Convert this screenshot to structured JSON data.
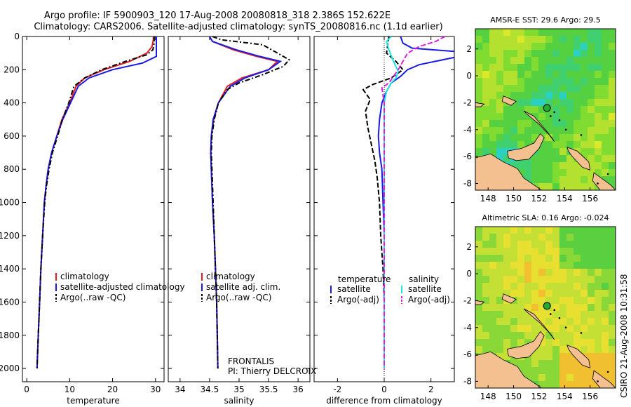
{
  "header": {
    "line1": "Argo profile: IF 5900903_120 17-Aug-2008 20080818_318 2.386S 152.622E",
    "line2": "Climatology: CARS2006. Satellite-adjusted climatology: synTS_20080816.nc (1.1d earlier)"
  },
  "credit": "CSIRO 21-Aug-2008 10:31:58",
  "pi_text": {
    "line1": "FRONTALIS",
    "line2": "PI: Thierry DELCROIX"
  },
  "colors": {
    "climatology": "#e02020",
    "satellite": "#1a1ae6",
    "argo": "#000000",
    "sat_salinity": "#1ee6e6",
    "argo_salinity": "#e020e0",
    "land": "#f4c090",
    "marker": "#22aa33"
  },
  "chart_data": [
    {
      "type": "line",
      "name": "temperature",
      "xlabel": "temperature",
      "ylabel": "",
      "xlim": [
        -1,
        32
      ],
      "ylim": [
        2080,
        0
      ],
      "xticks": [
        0,
        10,
        20,
        30
      ],
      "yticks": [
        0,
        200,
        400,
        600,
        800,
        1000,
        1200,
        1400,
        1600,
        1800,
        2000
      ],
      "legend": {
        "position": "bottom-right",
        "entries": [
          "climatology",
          "satellite-adjusted climatology",
          "Argo(..raw -QC)"
        ]
      },
      "series": [
        {
          "name": "climatology",
          "color": "#e02020",
          "dash": "",
          "points": [
            [
              29.5,
              0
            ],
            [
              29.5,
              20
            ],
            [
              29.2,
              60
            ],
            [
              28,
              100
            ],
            [
              24,
              150
            ],
            [
              18,
              200
            ],
            [
              13.5,
              250
            ],
            [
              11.5,
              300
            ],
            [
              10,
              400
            ],
            [
              8.2,
              500
            ],
            [
              7,
              600
            ],
            [
              5.8,
              700
            ],
            [
              5,
              800
            ],
            [
              4.5,
              900
            ],
            [
              4.1,
              1000
            ],
            [
              3.7,
              1200
            ],
            [
              3.3,
              1400
            ],
            [
              3,
              1600
            ],
            [
              2.7,
              1800
            ],
            [
              2.4,
              2000
            ]
          ]
        },
        {
          "name": "satellite-adjusted climatology",
          "color": "#1a1ae6",
          "dash": "",
          "points": [
            [
              30.2,
              0
            ],
            [
              30.2,
              40
            ],
            [
              30.2,
              80
            ],
            [
              30.2,
              120
            ],
            [
              27,
              160
            ],
            [
              20,
              200
            ],
            [
              14.5,
              250
            ],
            [
              12,
              300
            ],
            [
              10.2,
              400
            ],
            [
              8.4,
              500
            ],
            [
              7,
              600
            ],
            [
              5.8,
              700
            ],
            [
              5,
              800
            ],
            [
              4.5,
              900
            ],
            [
              4.1,
              1000
            ],
            [
              3.7,
              1200
            ],
            [
              3.3,
              1400
            ],
            [
              3,
              1600
            ],
            [
              2.7,
              1800
            ],
            [
              2.4,
              2000
            ]
          ]
        },
        {
          "name": "Argo(..raw -QC)",
          "color": "#000000",
          "dash": "7 3 2 3",
          "points": [
            [
              29.7,
              0
            ],
            [
              29.7,
              40
            ],
            [
              29.4,
              80
            ],
            [
              28,
              110
            ],
            [
              23,
              150
            ],
            [
              17.5,
              200
            ],
            [
              13.5,
              250
            ],
            [
              11,
              300
            ],
            [
              9.8,
              400
            ],
            [
              8.3,
              500
            ],
            [
              7.2,
              600
            ],
            [
              6,
              700
            ],
            [
              5.2,
              800
            ],
            [
              4.6,
              900
            ],
            [
              4.2,
              1000
            ],
            [
              3.7,
              1200
            ],
            [
              3.3,
              1400
            ],
            [
              3,
              1600
            ],
            [
              2.7,
              1800
            ],
            [
              2.4,
              2000
            ]
          ]
        }
      ]
    },
    {
      "type": "line",
      "name": "salinity",
      "xlabel": "salinity",
      "xlim": [
        33.8,
        36.2
      ],
      "ylim": [
        2080,
        0
      ],
      "xticks": [
        34,
        34.5,
        35,
        35.5,
        36
      ],
      "legend": {
        "position": "bottom-right",
        "entries": [
          "climatology",
          "satellite adj. clim.",
          "Argo(..raw -QC)"
        ]
      },
      "series": [
        {
          "name": "climatology",
          "color": "#e02020",
          "dash": "",
          "points": [
            [
              34.5,
              0
            ],
            [
              34.55,
              30
            ],
            [
              34.9,
              80
            ],
            [
              35.3,
              120
            ],
            [
              35.65,
              150
            ],
            [
              35.5,
              200
            ],
            [
              35.05,
              250
            ],
            [
              34.8,
              300
            ],
            [
              34.65,
              400
            ],
            [
              34.57,
              500
            ],
            [
              34.53,
              600
            ],
            [
              34.52,
              700
            ],
            [
              34.53,
              800
            ],
            [
              34.55,
              1000
            ],
            [
              34.58,
              1200
            ],
            [
              34.6,
              1400
            ],
            [
              34.62,
              1600
            ],
            [
              34.63,
              1800
            ],
            [
              34.64,
              2000
            ]
          ]
        },
        {
          "name": "satellite adj. clim.",
          "color": "#1a1ae6",
          "dash": "",
          "points": [
            [
              34.5,
              0
            ],
            [
              34.55,
              30
            ],
            [
              34.95,
              80
            ],
            [
              35.35,
              120
            ],
            [
              35.7,
              150
            ],
            [
              35.5,
              200
            ],
            [
              35.1,
              250
            ],
            [
              34.85,
              300
            ],
            [
              34.65,
              400
            ],
            [
              34.56,
              500
            ],
            [
              34.53,
              600
            ],
            [
              34.52,
              700
            ],
            [
              34.53,
              800
            ],
            [
              34.55,
              1000
            ],
            [
              34.58,
              1200
            ],
            [
              34.6,
              1400
            ],
            [
              34.62,
              1600
            ],
            [
              34.63,
              1800
            ],
            [
              34.64,
              2000
            ]
          ]
        },
        {
          "name": "Argo(..raw -QC)",
          "color": "#000000",
          "dash": "7 3 2 3",
          "points": [
            [
              34.55,
              0
            ],
            [
              34.7,
              20
            ],
            [
              35.4,
              50
            ],
            [
              35.6,
              90
            ],
            [
              35.85,
              140
            ],
            [
              35.75,
              180
            ],
            [
              35.4,
              230
            ],
            [
              35.0,
              280
            ],
            [
              34.8,
              320
            ],
            [
              34.65,
              400
            ],
            [
              34.58,
              500
            ],
            [
              34.54,
              600
            ],
            [
              34.53,
              700
            ],
            [
              34.54,
              800
            ],
            [
              34.56,
              1000
            ],
            [
              34.58,
              1200
            ],
            [
              34.6,
              1400
            ],
            [
              34.62,
              1600
            ],
            [
              34.63,
              1800
            ],
            [
              34.64,
              2000
            ]
          ]
        }
      ]
    },
    {
      "type": "line",
      "name": "difference from climatology",
      "xlabel": "difference from climatology",
      "xlim": [
        -3,
        3
      ],
      "ylim": [
        2080,
        0
      ],
      "xticks": [
        -2,
        0,
        2
      ],
      "legend": {
        "position": "bottom",
        "groups": [
          {
            "title": "temperature",
            "entries": [
              "satellite",
              "Argo(-adj)"
            ]
          },
          {
            "title": "salinity",
            "entries": [
              "satellite",
              "Argo(-adj)"
            ]
          }
        ]
      },
      "series": [
        {
          "name": "temperature satellite",
          "color": "#1a1ae6",
          "dash": "",
          "points": [
            [
              0.7,
              0
            ],
            [
              0.8,
              40
            ],
            [
              1.2,
              70
            ],
            [
              3,
              90
            ],
            [
              3.2,
              120
            ],
            [
              1.5,
              170
            ],
            [
              1,
              200
            ],
            [
              0.7,
              240
            ],
            [
              0.3,
              280
            ],
            [
              0.1,
              330
            ],
            [
              -0.1,
              400
            ],
            [
              -0.2,
              500
            ],
            [
              -0.25,
              600
            ],
            [
              -0.2,
              700
            ],
            [
              -0.1,
              800
            ],
            [
              -0.05,
              1000
            ],
            [
              0,
              1200
            ],
            [
              0,
              1400
            ],
            [
              0,
              1600
            ],
            [
              0,
              1800
            ],
            [
              0,
              2000
            ]
          ]
        },
        {
          "name": "temperature Argo(-adj)",
          "color": "#000000",
          "dash": "7 3",
          "points": [
            [
              0.2,
              0
            ],
            [
              0.1,
              100
            ],
            [
              0.5,
              150
            ],
            [
              0.8,
              200
            ],
            [
              0.3,
              250
            ],
            [
              -0.5,
              290
            ],
            [
              -0.9,
              320
            ],
            [
              -0.6,
              380
            ],
            [
              -0.8,
              450
            ],
            [
              -0.7,
              550
            ],
            [
              -0.55,
              650
            ],
            [
              -0.4,
              750
            ],
            [
              -0.3,
              850
            ],
            [
              -0.2,
              1000
            ],
            [
              -0.15,
              1200
            ],
            [
              -0.1,
              1300
            ],
            [
              -0.05,
              1400
            ],
            [
              0,
              1600
            ],
            [
              0,
              1800
            ],
            [
              0,
              2000
            ]
          ]
        },
        {
          "name": "salinity satellite",
          "color": "#1ee6e6",
          "dash": "",
          "points": [
            [
              0.3,
              0
            ],
            [
              0.1,
              30
            ],
            [
              0.2,
              80
            ],
            [
              0.4,
              150
            ],
            [
              0.6,
              210
            ],
            [
              0.5,
              250
            ],
            [
              0.3,
              280
            ],
            [
              0.1,
              330
            ],
            [
              0,
              400
            ],
            [
              0,
              600
            ],
            [
              0,
              800
            ],
            [
              0,
              1000
            ],
            [
              0,
              1200
            ],
            [
              0,
              1400
            ],
            [
              0,
              1600
            ],
            [
              0,
              1800
            ],
            [
              0,
              2000
            ]
          ]
        },
        {
          "name": "salinity Argo(-adj)",
          "color": "#e020e0",
          "dash": "7 3",
          "points": [
            [
              2.6,
              0
            ],
            [
              2.2,
              30
            ],
            [
              1.5,
              60
            ],
            [
              1.0,
              100
            ],
            [
              0.8,
              150
            ],
            [
              0.6,
              200
            ],
            [
              0.4,
              240
            ],
            [
              0.2,
              280
            ],
            [
              -0.1,
              310
            ],
            [
              0,
              400
            ],
            [
              0,
              600
            ],
            [
              0,
              800
            ],
            [
              0,
              1000
            ],
            [
              0,
              1200
            ],
            [
              0,
              1400
            ],
            [
              0,
              1600
            ],
            [
              0,
              1800
            ],
            [
              0,
              2000
            ]
          ]
        }
      ]
    },
    {
      "type": "heatmap",
      "name": "sst-map",
      "title": "AMSR-E SST: 29.6 Argo: 29.5",
      "xlim": [
        147,
        158
      ],
      "ylim": [
        -8.5,
        3.5
      ],
      "xticks": [
        148,
        150,
        152,
        154,
        156
      ],
      "yticks": [
        2,
        0,
        -2,
        -4,
        -6,
        -8
      ],
      "marker": {
        "lon": 152.62,
        "lat": -2.39
      }
    },
    {
      "type": "heatmap",
      "name": "sla-map",
      "title": "Altimetric SLA: 0.16 Argo: -0.024",
      "xlim": [
        147,
        158
      ],
      "ylim": [
        -8.5,
        3.5
      ],
      "xticks": [
        148,
        150,
        152,
        154,
        156
      ],
      "yticks": [
        2,
        0,
        -2,
        -4,
        -6,
        -8
      ],
      "marker": {
        "lon": 152.62,
        "lat": -2.39
      }
    }
  ]
}
